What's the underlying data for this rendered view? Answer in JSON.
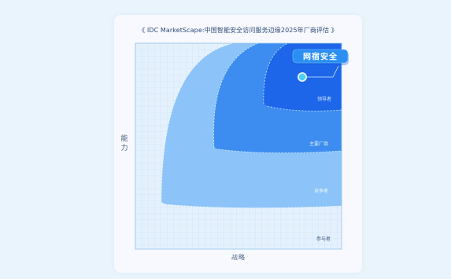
{
  "chart_data": {
    "type": "quadrant",
    "title": "《 IDC MarketScape:中国智能安全访问服务边缘2025年厂商评估 》",
    "xlabel": "战略",
    "ylabel": "能力",
    "grid": true,
    "zones": [
      {
        "key": "participant",
        "label": "参与者",
        "color": "#e4f1fd"
      },
      {
        "key": "contender",
        "label": "竞争者",
        "color": "#8cc3f8"
      },
      {
        "key": "major",
        "label": "主要厂商",
        "color": "#3d8df0"
      },
      {
        "key": "leader",
        "label": "领导者",
        "color": "#1d66ea"
      }
    ],
    "vendors": [
      {
        "name": "网宿安全",
        "zone": "leader",
        "color": "#49d2f4"
      }
    ]
  }
}
